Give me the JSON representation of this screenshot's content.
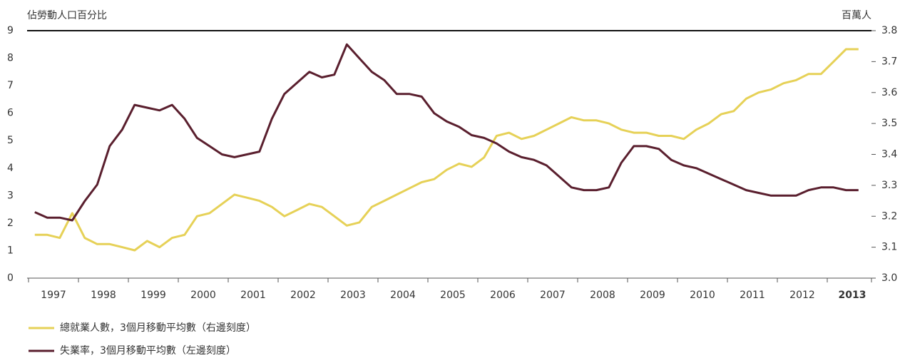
{
  "chart_data": {
    "type": "line",
    "y_axis_title": "佔勞動人口百分比",
    "y2_axis_title": "百萬人",
    "categories": [
      null,
      "1997",
      null,
      null,
      null,
      "1998",
      null,
      null,
      null,
      "1999",
      null,
      null,
      null,
      "2000",
      null,
      null,
      null,
      "2001",
      null,
      null,
      null,
      "2002",
      null,
      null,
      null,
      "2003",
      null,
      null,
      null,
      "2004",
      null,
      null,
      null,
      "2005",
      null,
      null,
      null,
      "2006",
      null,
      null,
      null,
      "2007",
      null,
      null,
      null,
      "2008",
      null,
      null,
      null,
      "2009",
      null,
      null,
      null,
      "2010",
      null,
      null,
      null,
      "2011",
      null,
      null,
      null,
      "2012",
      null,
      null,
      null,
      "2013",
      null
    ],
    "series": [
      {
        "name": "總就業人數，3個月移動平均數（右邊刻度）",
        "color": "#e6d157",
        "axis": "y2",
        "values": [
          3.14,
          3.14,
          3.13,
          3.21,
          3.13,
          3.11,
          3.11,
          3.1,
          3.09,
          3.12,
          3.1,
          3.13,
          3.14,
          3.2,
          3.21,
          3.24,
          3.27,
          3.26,
          3.25,
          3.23,
          3.2,
          3.22,
          3.24,
          3.23,
          3.2,
          3.17,
          3.18,
          3.23,
          3.25,
          3.27,
          3.29,
          3.31,
          3.32,
          3.35,
          3.37,
          3.36,
          3.39,
          3.46,
          3.47,
          3.45,
          3.46,
          3.48,
          3.5,
          3.52,
          3.51,
          3.51,
          3.5,
          3.48,
          3.47,
          3.47,
          3.46,
          3.46,
          3.45,
          3.48,
          3.5,
          3.53,
          3.54,
          3.58,
          3.6,
          3.61,
          3.63,
          3.64,
          3.66,
          3.66,
          3.7,
          3.74,
          3.74
        ]
      },
      {
        "name": "失業率，3個月移動平均數（左邊刻度）",
        "color": "#5a1f2e",
        "values": [
          2.4,
          2.2,
          2.2,
          2.1,
          2.8,
          3.4,
          4.8,
          5.4,
          6.3,
          6.2,
          6.1,
          6.3,
          5.8,
          5.1,
          4.8,
          4.5,
          4.4,
          4.5,
          4.6,
          5.8,
          6.7,
          7.1,
          7.5,
          7.3,
          7.4,
          8.5,
          8.0,
          7.5,
          7.2,
          6.7,
          6.7,
          6.6,
          6.0,
          5.7,
          5.5,
          5.2,
          5.1,
          4.9,
          4.6,
          4.4,
          4.3,
          4.1,
          3.7,
          3.3,
          3.2,
          3.2,
          3.3,
          4.2,
          4.8,
          4.8,
          4.7,
          4.3,
          4.1,
          4.0,
          3.8,
          3.6,
          3.4,
          3.2,
          3.1,
          3.0,
          3.0,
          3.0,
          3.2,
          3.3,
          3.3,
          3.2,
          3.2
        ]
      }
    ],
    "ylim": [
      0,
      9
    ],
    "yticks": [
      0,
      1,
      2,
      3,
      4,
      5,
      6,
      7,
      8,
      9
    ],
    "y2lim": [
      3,
      3.8
    ],
    "y2ticks": [
      {
        "value": 3,
        "label": "3.0"
      },
      3.1,
      3.2,
      3.3,
      3.4,
      3.5,
      3.6,
      3.7,
      3.8
    ]
  }
}
